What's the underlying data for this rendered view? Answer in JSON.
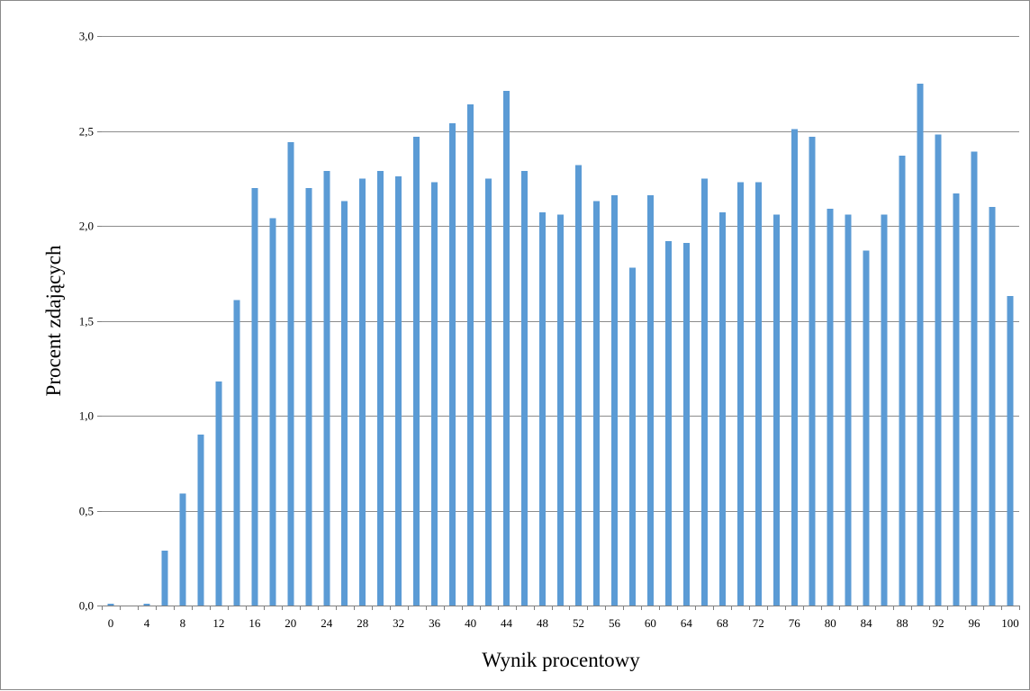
{
  "chart_data": {
    "type": "bar",
    "xlabel": "Wynik procentowy",
    "ylabel": "Procent zdających",
    "ylim": [
      0,
      3.0
    ],
    "y_ticks": [
      "0,0",
      "0,5",
      "1,0",
      "1,5",
      "2,0",
      "2,5",
      "3,0"
    ],
    "grid": true,
    "bar_color": "#5B9BD5",
    "categories": [
      0,
      2,
      4,
      6,
      8,
      10,
      12,
      14,
      16,
      18,
      20,
      22,
      24,
      26,
      28,
      30,
      32,
      34,
      36,
      38,
      40,
      42,
      44,
      46,
      48,
      50,
      52,
      54,
      56,
      58,
      60,
      62,
      64,
      66,
      68,
      70,
      72,
      74,
      76,
      78,
      80,
      82,
      84,
      86,
      88,
      90,
      92,
      94,
      96,
      98,
      100
    ],
    "x_tick_labels": [
      "0",
      "",
      "4",
      "",
      "8",
      "",
      "12",
      "",
      "16",
      "",
      "20",
      "",
      "24",
      "",
      "28",
      "",
      "32",
      "",
      "36",
      "",
      "40",
      "",
      "44",
      "",
      "48",
      "",
      "52",
      "",
      "56",
      "",
      "60",
      "",
      "64",
      "",
      "68",
      "",
      "72",
      "",
      "76",
      "",
      "80",
      "",
      "84",
      "",
      "88",
      "",
      "92",
      "",
      "96",
      "",
      "100"
    ],
    "values": [
      0.01,
      0.0,
      0.01,
      0.29,
      0.59,
      0.9,
      1.18,
      1.61,
      2.2,
      2.04,
      2.44,
      2.2,
      2.29,
      2.13,
      2.25,
      2.29,
      2.26,
      2.47,
      2.23,
      2.54,
      2.64,
      2.25,
      2.71,
      2.29,
      2.07,
      2.06,
      2.32,
      2.13,
      2.16,
      1.78,
      2.16,
      1.92,
      1.91,
      2.25,
      2.07,
      2.23,
      2.23,
      2.06,
      2.51,
      2.47,
      2.09,
      2.06,
      1.87,
      2.06,
      2.37,
      2.75,
      2.48,
      2.17,
      2.39,
      2.1,
      1.63
    ]
  }
}
